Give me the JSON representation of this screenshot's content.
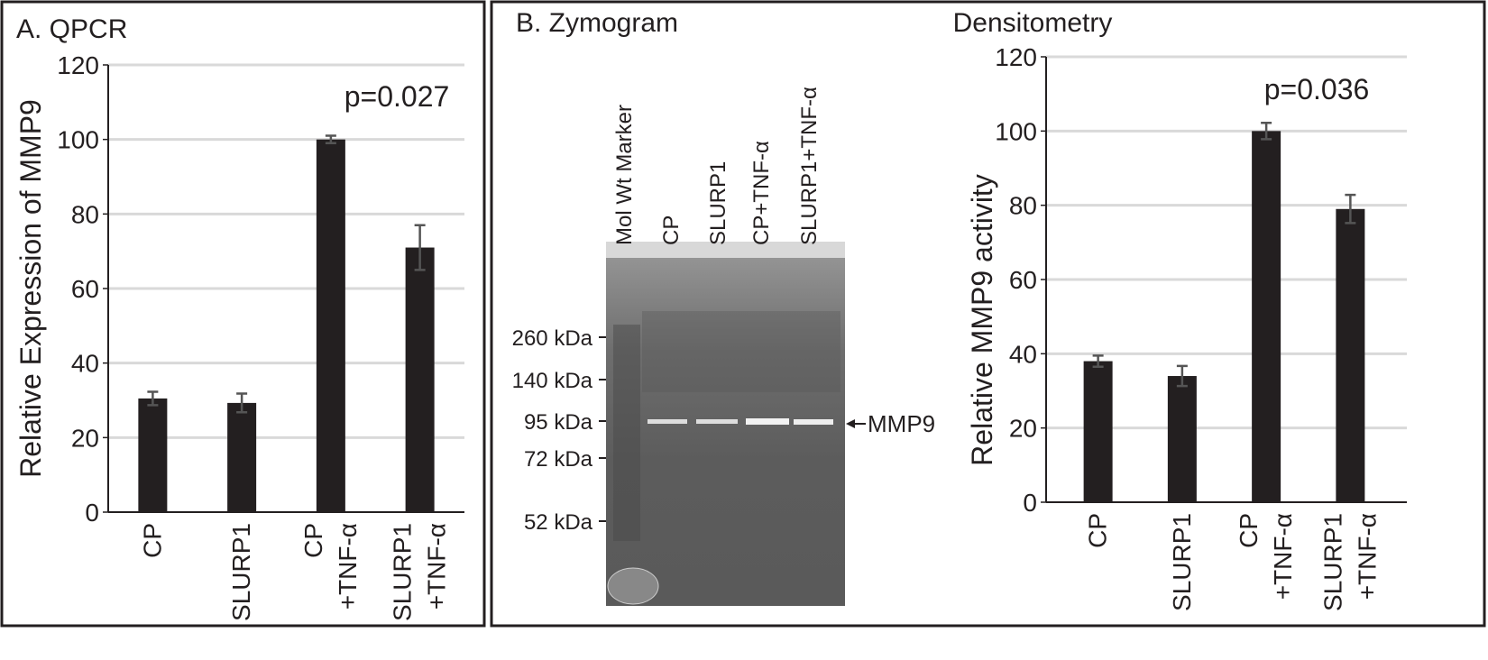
{
  "chart_data": [
    {
      "type": "bar",
      "title": "A. QPCR",
      "ylabel": "Relative Expression of MMP9",
      "categories": [
        [
          "CP"
        ],
        [
          "SLURP1"
        ],
        [
          "CP",
          "+TNF-α"
        ],
        [
          "SLURP1",
          "+TNF-α"
        ]
      ],
      "values": [
        30.5,
        29.3,
        100,
        71
      ],
      "errors": [
        1.8,
        2.5,
        1,
        6
      ],
      "color": "#231f20",
      "ylim": [
        0,
        120
      ],
      "yticks": [
        0,
        20,
        40,
        60,
        80,
        100,
        120
      ],
      "grid": true,
      "annotation": "p=0.027"
    },
    {
      "type": "bar",
      "title": "Densitometry",
      "ylabel": "Relative MMP9 activity",
      "categories": [
        [
          "CP"
        ],
        [
          "SLURP1"
        ],
        [
          "CP",
          "+TNF-α"
        ],
        [
          "SLURP1",
          "+TNF-α"
        ]
      ],
      "values": [
        38,
        34,
        100,
        79
      ],
      "errors": [
        1.5,
        2.7,
        2.2,
        3.8
      ],
      "color": "#231f20",
      "ylim": [
        0,
        120
      ],
      "yticks": [
        0,
        20,
        40,
        60,
        80,
        100,
        120
      ],
      "grid": true,
      "annotation": "p=0.036"
    }
  ],
  "zymogram": {
    "title": "B. Zymogram",
    "lanes": [
      "Mol Wt Marker",
      "CP",
      "SLURP1",
      "CP+TNF-α",
      "SLURP1+TNF-α"
    ],
    "markers": [
      "260 kDa",
      "140 kDa",
      "95 kDa",
      "72 kDa",
      "52 kDa"
    ],
    "band_label": "MMP9"
  }
}
